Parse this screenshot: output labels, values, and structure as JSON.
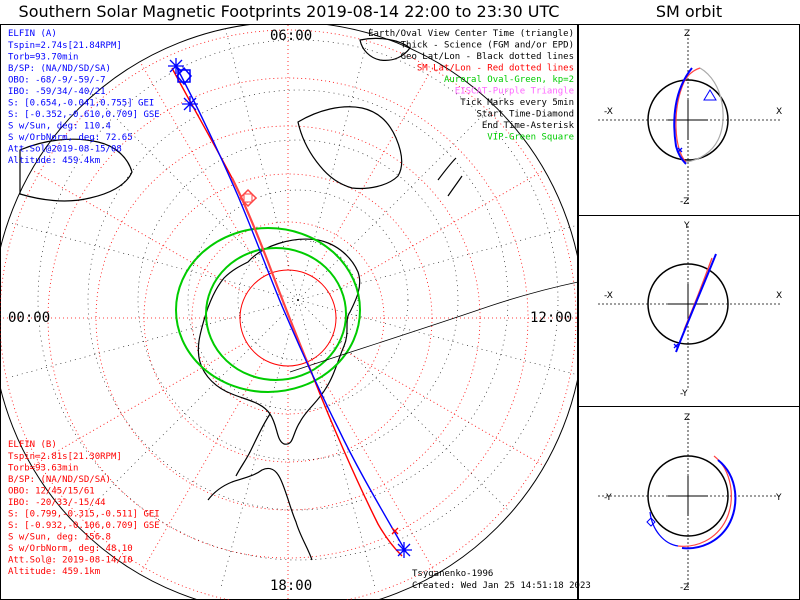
{
  "title": "Southern Solar Magnetic Footprints 2019-08-14 22:00 to 23:30 UTC",
  "orbit_title": "SM orbit",
  "clock_labels": {
    "top": "06:00",
    "left": "00:00",
    "right": "12:00",
    "bottom": "18:00"
  },
  "elfin_a": {
    "name": "ELFIN (A)",
    "color": "#0000ff",
    "lines": [
      "Tspin=2.74s[21.84RPM]",
      "Torb=93.70min",
      "B/SP: (NA/ND/SD/SA)",
      "OBO: -68/-9/-59/-7",
      "IBO: -59/34/-40/21",
      "S: [0.654,-0.041,0.755] GEI",
      "S: [-0.352,-0.610,0.709] GSE",
      "S w/Sun, deg: 110.4",
      "S w/OrbNorm, deg: 72.65",
      "Att.Sol@2019-08-15/08",
      "Altitude: 459.4km"
    ]
  },
  "elfin_b": {
    "name": "ELFIN (B)",
    "color": "#ff0000",
    "lines": [
      "Tspin=2.81s[21.30RPM]",
      "Torb=93.63min",
      "B/SP: (NA/ND/SD/SA)",
      "OBO: 12/45/15/61",
      "IBO: -20/33/-15/44",
      "S: [0.799,-0.315,-0.511] GEI",
      "S: [-0.932,-0.106,0.709] GSE",
      "S w/Sun, deg: 156.8",
      "S w/OrbNorm, deg: 48.10",
      "Att.Sol@: 2019-08-14/10",
      "Altitude: 459.1km"
    ]
  },
  "legend": [
    {
      "text": "Earth/Oval View Center Time (triangle)",
      "color": "#000000"
    },
    {
      "text": "Thick - Science (FGM and/or EPD)",
      "color": "#000000"
    },
    {
      "text": "Geo Lat/Lon - Black dotted lines",
      "color": "#000000"
    },
    {
      "text": "SM Lat/Lon - Red dotted lines",
      "color": "#ff0000"
    },
    {
      "text": "Auroral Oval-Green, kp=2",
      "color": "#00cc00"
    },
    {
      "text": "EISCAT-Purple Triangle",
      "color": "#ff66ff"
    },
    {
      "text": "Tick Marks every 5min",
      "color": "#000000"
    },
    {
      "text": "Start Time-Diamond",
      "color": "#000000"
    },
    {
      "text": "End Time-Asterisk",
      "color": "#000000"
    },
    {
      "text": "VIP-Green Square",
      "color": "#00cc00"
    }
  ],
  "footer": {
    "author": "Tsyganenko-1996",
    "created": "Created: Wed Jan 25 14:51:18 2023"
  },
  "orbit_panels": [
    {
      "top": "Z",
      "bottom": "-Z",
      "left": "-X",
      "right": "X"
    },
    {
      "top": "Y",
      "bottom": "-Y",
      "left": "-X",
      "right": "X"
    },
    {
      "top": "Z",
      "bottom": "-Z",
      "left": "-Y",
      "right": "Y"
    }
  ],
  "chart_data": {
    "type": "scatter",
    "projection": "southern polar, SM magnetic local time",
    "mlt_labels": [
      "06:00",
      "00:00",
      "12:00",
      "18:00"
    ],
    "series": [
      {
        "name": "ELFIN (A)",
        "color": "#0000ff"
      },
      {
        "name": "ELFIN (B)",
        "color": "#ff0000"
      },
      {
        "name": "Auroral Oval-Green, kp=2",
        "color": "#00cc00"
      }
    ],
    "grid": true
  }
}
